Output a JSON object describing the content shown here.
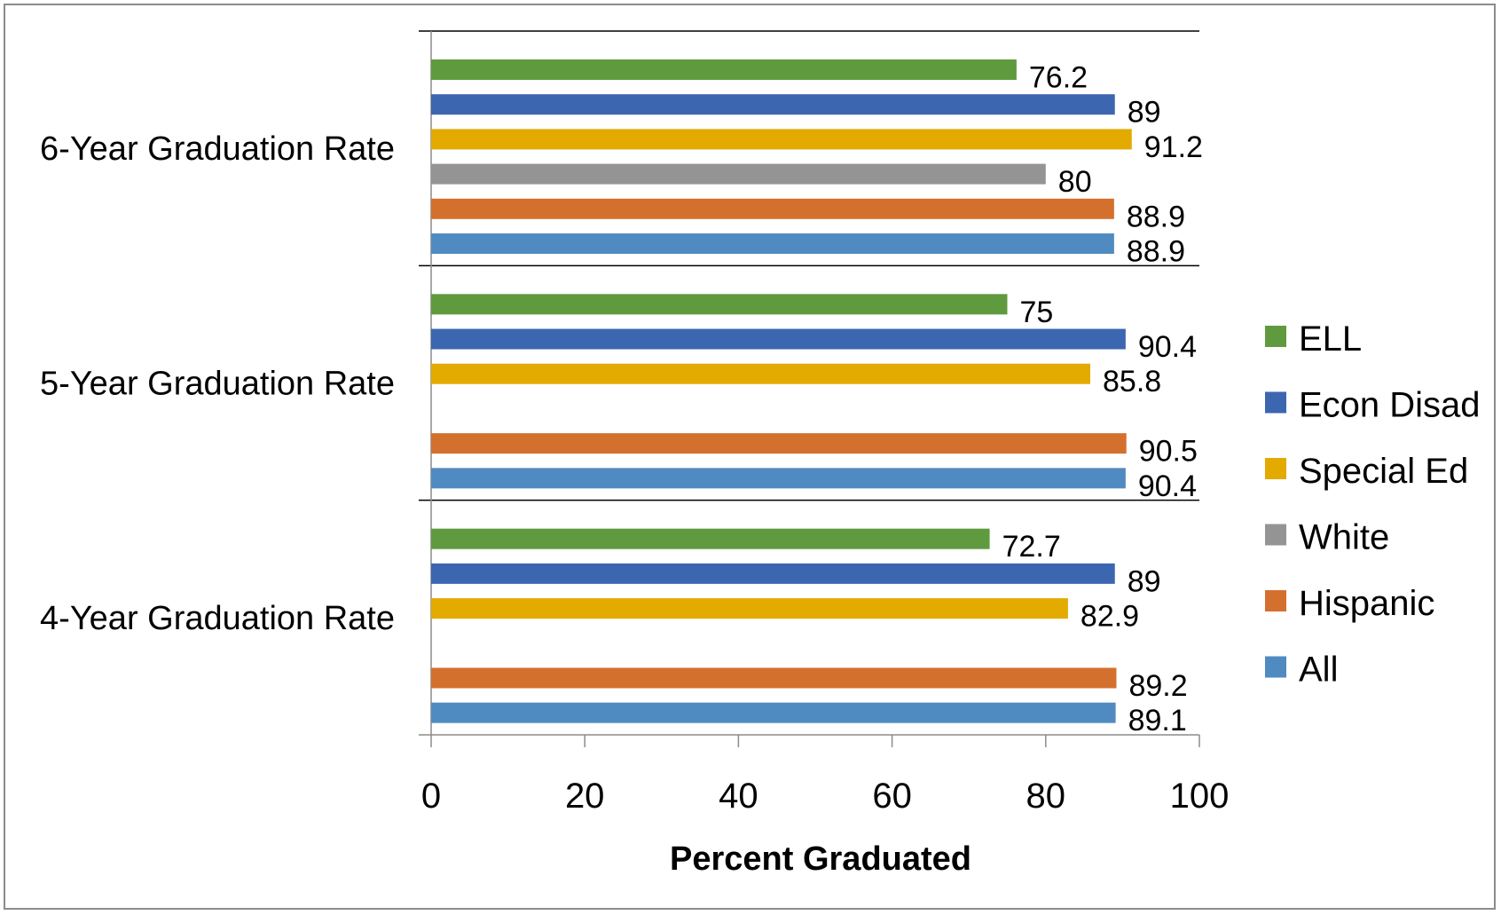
{
  "chart_data": {
    "type": "bar",
    "orientation": "horizontal",
    "categories": [
      "6-Year Graduation Rate",
      "5-Year Graduation Rate",
      "4-Year Graduation Rate"
    ],
    "series": [
      {
        "name": "ELL",
        "color": "#5f9a3f",
        "values": [
          76.2,
          75,
          72.7
        ]
      },
      {
        "name": "Econ Disad",
        "color": "#3c66b0",
        "values": [
          89,
          90.4,
          89
        ]
      },
      {
        "name": "Special Ed",
        "color": "#e3aa00",
        "values": [
          91.2,
          85.8,
          82.9
        ]
      },
      {
        "name": "White",
        "color": "#949494",
        "values": [
          80,
          null,
          null
        ]
      },
      {
        "name": "Hispanic",
        "color": "#d4702e",
        "values": [
          88.9,
          90.5,
          89.2
        ]
      },
      {
        "name": "All",
        "color": "#4f8bc0",
        "values": [
          88.9,
          90.4,
          89.1
        ]
      }
    ],
    "value_labels": [
      [
        "76.2",
        "75",
        "72.7"
      ],
      [
        "89",
        "90.4",
        "89"
      ],
      [
        "91.2",
        "85.8",
        "82.9"
      ],
      [
        "80",
        "",
        ""
      ],
      [
        "88.9",
        "90.5",
        "89.2"
      ],
      [
        "88.9",
        "90.4",
        "89.1"
      ]
    ],
    "xlabel": "Percent Graduated",
    "ylabel": "",
    "xlim": [
      0,
      100
    ],
    "xticks": [
      0,
      20,
      40,
      60,
      80,
      100
    ],
    "xtick_labels": [
      "0",
      "20",
      "40",
      "60",
      "80",
      "100"
    ],
    "grid": false,
    "legend_position": "right"
  }
}
